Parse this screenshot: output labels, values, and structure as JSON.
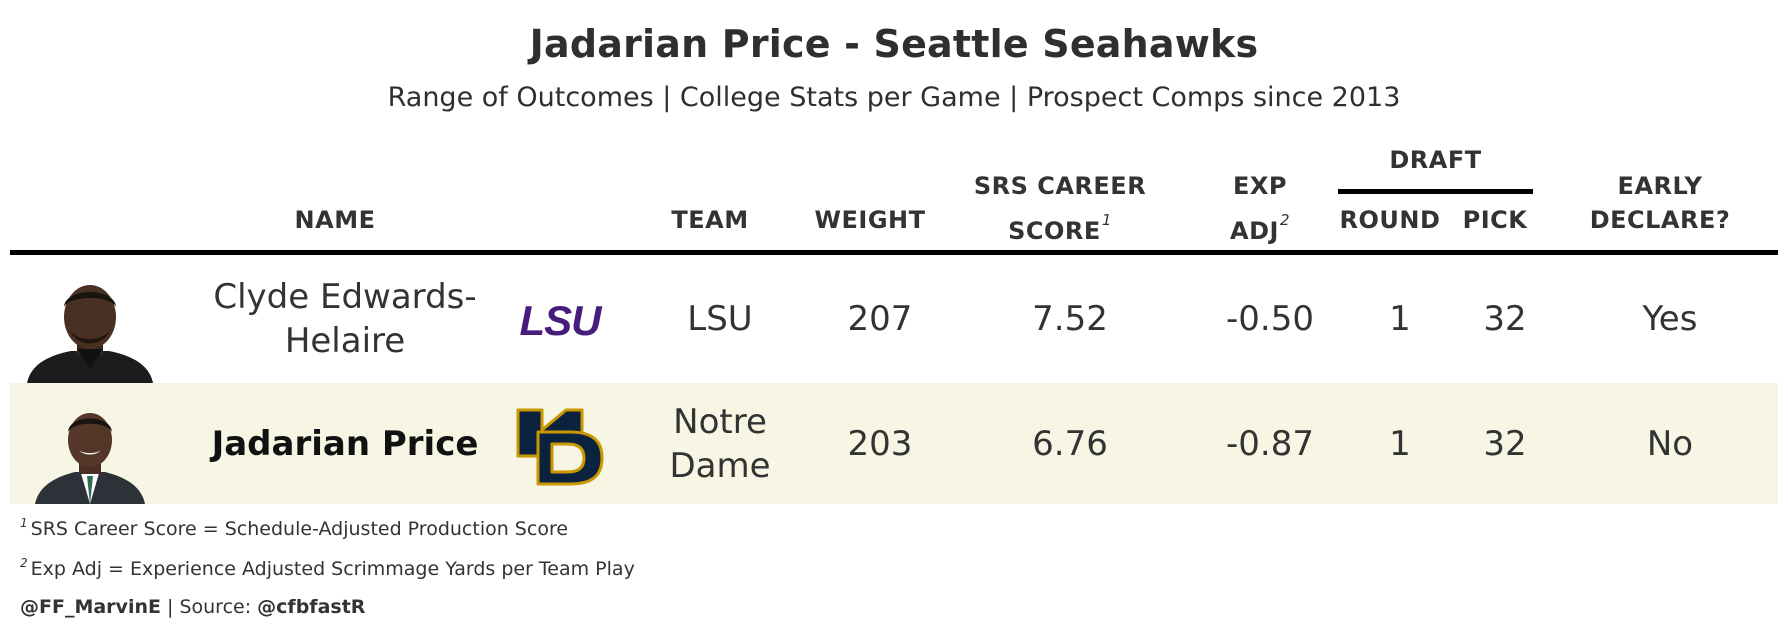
{
  "title": "Jadarian Price - Seattle Seahawks",
  "subtitle": "Range of Outcomes | College Stats per Game | Prospect Comps since 2013",
  "headers": {
    "name": "NAME",
    "team": "TEAM",
    "weight": "WEIGHT",
    "srs_line1": "SRS CAREER",
    "srs_line2": "SCORE",
    "srs_note": "1",
    "exp_line1": "EXP",
    "exp_line2": "ADJ",
    "exp_note": "2",
    "draft": "DRAFT",
    "round": "ROUND",
    "pick": "PICK",
    "early_line1": "EARLY",
    "early_line2": "DECLARE?"
  },
  "rows": [
    {
      "name_line1": "Clyde Edwards-",
      "name_line2": "Helaire",
      "logo": "LSU",
      "team_line1": "LSU",
      "team_line2": "",
      "weight": "207",
      "srs": "7.52",
      "exp_adj": "-0.50",
      "round": "1",
      "pick": "32",
      "early_declare": "Yes",
      "bg": "#ffffff"
    },
    {
      "name": "Jadarian Price",
      "logo": "ND",
      "team_line1": "Notre",
      "team_line2": "Dame",
      "weight": "203",
      "srs": "6.76",
      "exp_adj": "-0.87",
      "round": "1",
      "pick": "32",
      "early_declare": "No",
      "bg": "#f7f6e4"
    }
  ],
  "footnotes": {
    "note1_num": "1",
    "note1": "SRS Career Score = Schedule-Adjusted Production Score",
    "note2_num": "2",
    "note2": "Exp Adj = Experience Adjusted Scrimmage Yards per Team Play",
    "credit_handle": "@FF_MarvinE",
    "credit_sep": "| Source:",
    "credit_source": "@cfbfastR"
  },
  "colors": {
    "lsu_purple": "#461d7c",
    "nd_navy": "#0c2340",
    "nd_gold": "#c99700",
    "highlight_row": "#f7f6e4"
  }
}
